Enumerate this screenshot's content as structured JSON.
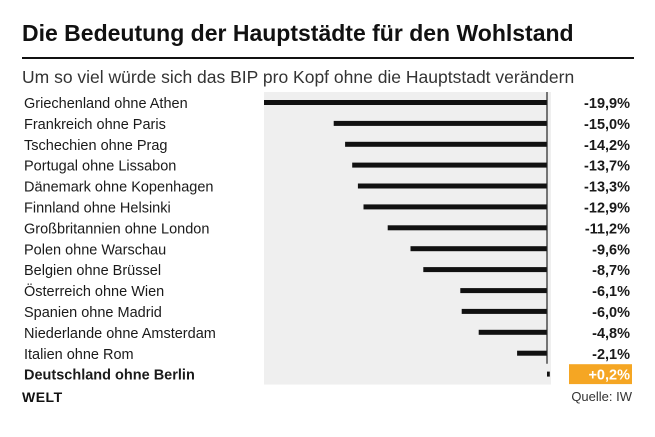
{
  "header": {
    "title": "Die Bedeutung der Hauptstädte für den Wohlstand",
    "subtitle": "Um so viel würde sich das BIP pro Kopf ohne die Hauptstadt verändern"
  },
  "footer": {
    "logo": "WELT",
    "source": "Quelle: IW"
  },
  "chart_data": {
    "type": "bar",
    "orientation": "horizontal",
    "title": "Die Bedeutung der Hauptstädte für den Wohlstand",
    "subtitle": "Um so viel würde sich das BIP pro Kopf ohne die Hauptstadt verändern",
    "unit": "%",
    "xlim": [
      -19.9,
      0.2
    ],
    "grid": false,
    "categories": [
      "Griechenland ohne Athen",
      "Frankreich ohne Paris",
      "Tschechien ohne Prag",
      "Portugal ohne Lissabon",
      "Dänemark ohne Kopenhagen",
      "Finnland ohne Helsinki",
      "Großbritannien ohne London",
      "Polen ohne Warschau",
      "Belgien ohne Brüssel",
      "Österreich ohne Wien",
      "Spanien ohne Madrid",
      "Niederlande ohne Amsterdam",
      "Italien ohne Rom",
      "Deutschland ohne Berlin"
    ],
    "values": [
      -19.9,
      -15.0,
      -14.2,
      -13.7,
      -13.3,
      -12.9,
      -11.2,
      -9.6,
      -8.7,
      -6.1,
      -6.0,
      -4.8,
      -2.1,
      0.2
    ],
    "value_labels": [
      "-19,9%",
      "-15,0%",
      "-14,2%",
      "-13,7%",
      "-13,3%",
      "-12,9%",
      "-11,2%",
      "-9,6%",
      "-8,7%",
      "-6,1%",
      "-6,0%",
      "-4,8%",
      "-2,1%",
      "+0,2%"
    ],
    "highlight_index": 13,
    "colors": {
      "bar": "#111111",
      "highlight_label_bg": "#f5a623",
      "highlight_label_text": "#ffffff",
      "track": "#efefef",
      "axis": "#222222",
      "label_text": "#1a1a1a"
    }
  }
}
